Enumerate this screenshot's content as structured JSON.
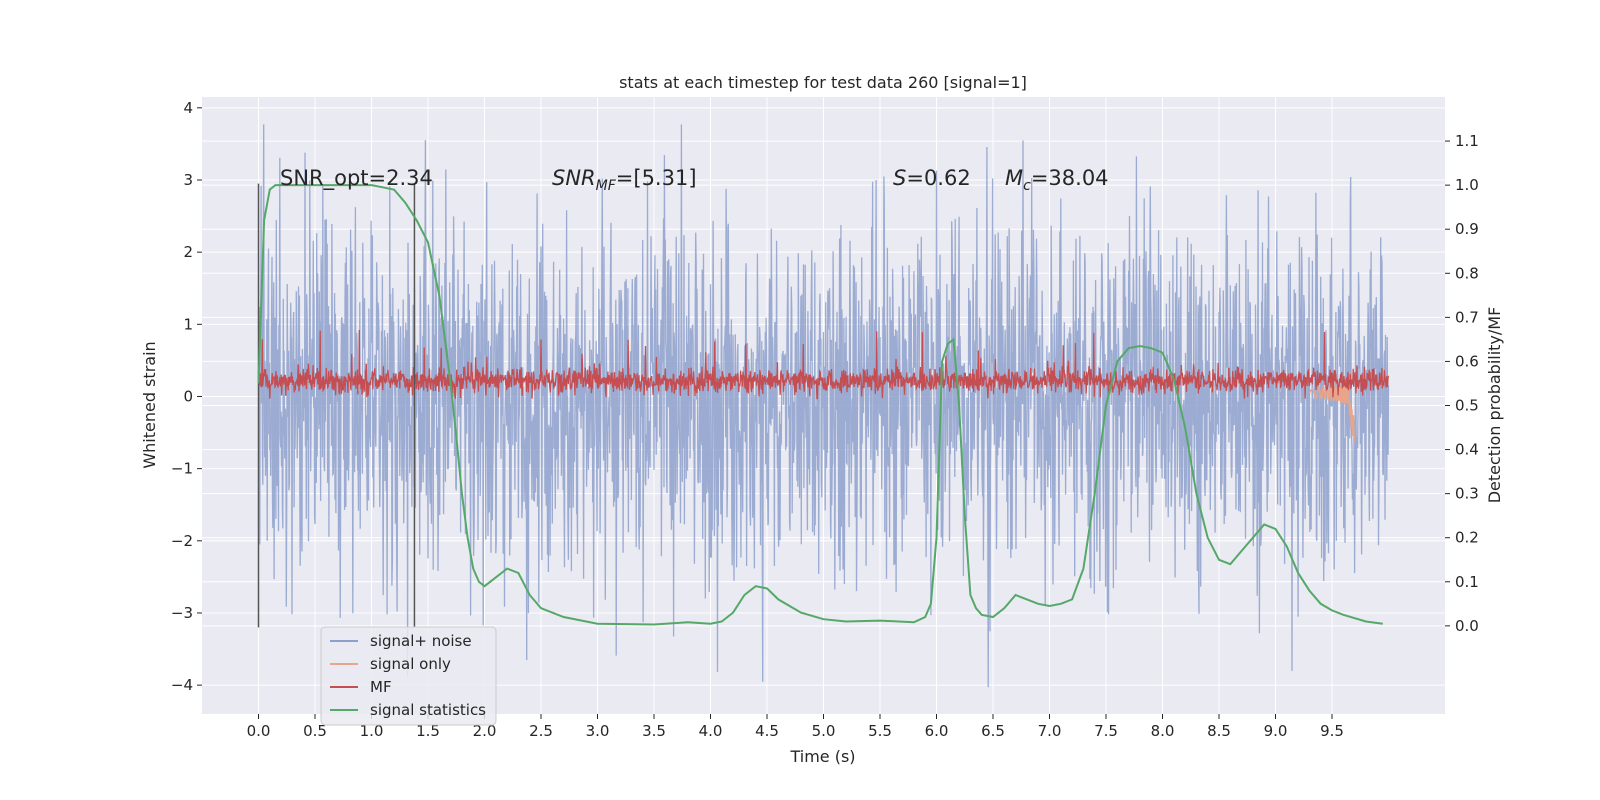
{
  "chart_data": {
    "type": "line",
    "title": "stats at each timestep for test data 260 [signal=1]",
    "xlabel": "Time (s)",
    "ylabel_left": "Whitened strain",
    "ylabel_right": "Detection probability/MF",
    "xlim": [
      -0.5,
      10.5
    ],
    "ylim_left": [
      -4.4,
      4.15
    ],
    "ylim_right": [
      -0.2,
      1.2
    ],
    "x_ticks": [
      "0.0",
      "0.5",
      "1.0",
      "1.5",
      "2.0",
      "2.5",
      "3.0",
      "3.5",
      "4.0",
      "4.5",
      "5.0",
      "5.5",
      "6.0",
      "6.5",
      "7.0",
      "7.5",
      "8.0",
      "8.5",
      "9.0",
      "9.5"
    ],
    "y_ticks_left": [
      "−4",
      "−3",
      "−2",
      "−1",
      "0",
      "1",
      "2",
      "3",
      "4"
    ],
    "y_ticks_right": [
      "0.0",
      "0.1",
      "0.2",
      "0.3",
      "0.4",
      "0.5",
      "0.6",
      "0.7",
      "0.8",
      "0.9",
      "1.0",
      "1.1"
    ],
    "grid": true,
    "legend_position": "lower-left",
    "annotations": {
      "snr_opt": "SNR_opt=2.34",
      "snr_mf_main": "SNR",
      "snr_mf_sub": "MF",
      "snr_mf_value": "=[5.31]",
      "s_label": "S",
      "s_value": "=0.62",
      "mc_main": "M",
      "mc_sub": "c",
      "mc_value": "=38.04"
    },
    "vertical_markers": [
      0.0,
      1.38
    ],
    "series": [
      {
        "name": "signal+ noise",
        "color": "#8da0cb",
        "summary": {
          "x_range": [
            0.0,
            10.0
          ],
          "typical_amplitude": 1.2,
          "min": -4.05,
          "max": 3.77
        }
      },
      {
        "name": "signal only",
        "color": "#e8a58a",
        "summary": {
          "x_range": [
            9.3,
            9.7
          ],
          "min": -0.55,
          "max": 0.2
        }
      },
      {
        "name": "MF",
        "color": "#c44e52",
        "summary": {
          "x_range": [
            0.0,
            10.0
          ],
          "center": 0.22,
          "band": [
            0.05,
            0.45
          ],
          "max": 1.0
        }
      },
      {
        "name": "signal statistics",
        "color": "#55a868",
        "x": [
          0.0,
          0.05,
          0.1,
          0.15,
          0.2,
          0.3,
          0.5,
          0.7,
          0.9,
          1.0,
          1.1,
          1.2,
          1.3,
          1.4,
          1.5,
          1.6,
          1.7,
          1.75,
          1.8,
          1.85,
          1.9,
          1.95,
          2.0,
          2.1,
          2.2,
          2.3,
          2.4,
          2.5,
          2.7,
          3.0,
          3.5,
          3.8,
          4.0,
          4.1,
          4.2,
          4.3,
          4.4,
          4.5,
          4.6,
          4.8,
          5.0,
          5.2,
          5.5,
          5.8,
          5.9,
          5.95,
          6.0,
          6.05,
          6.1,
          6.15,
          6.2,
          6.25,
          6.3,
          6.35,
          6.4,
          6.5,
          6.6,
          6.7,
          6.8,
          6.9,
          7.0,
          7.1,
          7.2,
          7.3,
          7.4,
          7.5,
          7.6,
          7.7,
          7.8,
          7.9,
          8.0,
          8.1,
          8.2,
          8.3,
          8.4,
          8.5,
          8.6,
          8.7,
          8.8,
          8.9,
          9.0,
          9.1,
          9.2,
          9.3,
          9.4,
          9.5,
          9.6,
          9.8,
          9.95
        ],
        "values": [
          0.55,
          0.92,
          0.99,
          1.0,
          1.0,
          1.0,
          1.0,
          1.0,
          1.0,
          1.0,
          0.995,
          0.99,
          0.96,
          0.92,
          0.87,
          0.75,
          0.55,
          0.43,
          0.3,
          0.2,
          0.13,
          0.1,
          0.09,
          0.11,
          0.13,
          0.12,
          0.07,
          0.04,
          0.02,
          0.005,
          0.003,
          0.008,
          0.005,
          0.01,
          0.03,
          0.07,
          0.09,
          0.085,
          0.06,
          0.03,
          0.015,
          0.01,
          0.012,
          0.008,
          0.02,
          0.05,
          0.2,
          0.6,
          0.64,
          0.65,
          0.5,
          0.25,
          0.07,
          0.04,
          0.025,
          0.02,
          0.04,
          0.07,
          0.06,
          0.05,
          0.045,
          0.05,
          0.06,
          0.13,
          0.3,
          0.5,
          0.6,
          0.63,
          0.635,
          0.63,
          0.62,
          0.56,
          0.45,
          0.3,
          0.2,
          0.15,
          0.14,
          0.17,
          0.2,
          0.23,
          0.22,
          0.18,
          0.12,
          0.08,
          0.05,
          0.035,
          0.025,
          0.01,
          0.005
        ]
      }
    ]
  }
}
